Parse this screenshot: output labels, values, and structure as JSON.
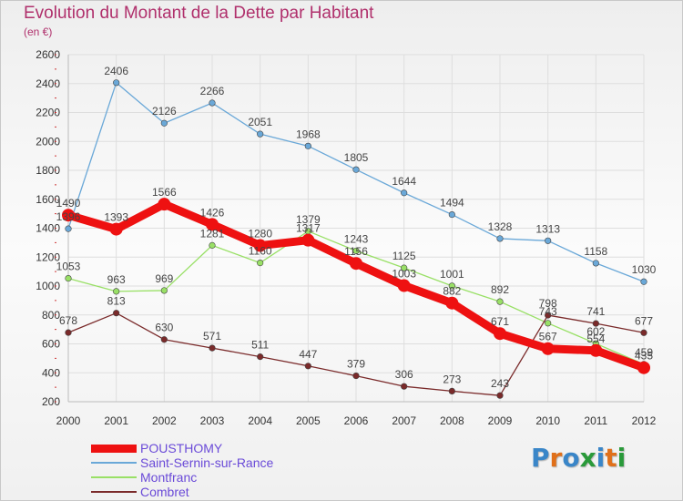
{
  "title": "Evolution du Montant de la Dette par Habitant",
  "subtitle": "(en €)",
  "logo": {
    "text": "Proxiti",
    "colors": [
      "#3a86c8",
      "#e0701a",
      "#3a86c8",
      "#2a9a3a",
      "#3a86c8",
      "#e0701a",
      "#2a9a3a"
    ]
  },
  "chart_data": {
    "type": "line",
    "title": "Evolution du Montant de la Dette par Habitant",
    "subtitle": "(en €)",
    "xlabel": "",
    "ylabel": "",
    "ylim": [
      200,
      2600
    ],
    "yticks": [
      200,
      400,
      600,
      800,
      1000,
      1200,
      1400,
      1600,
      1800,
      2000,
      2200,
      2400,
      2600
    ],
    "categories": [
      "2000",
      "2001",
      "2002",
      "2003",
      "2004",
      "2005",
      "2006",
      "2007",
      "2008",
      "2009",
      "2010",
      "2011",
      "2012"
    ],
    "grid": true,
    "legend_position": "bottom-left",
    "series": [
      {
        "name": "POUSTHOMY",
        "color": "#ee1111",
        "emphasis": true,
        "values": [
          1490,
          1393,
          1566,
          1426,
          1280,
          1317,
          1156,
          1003,
          882,
          671,
          567,
          554,
          435
        ]
      },
      {
        "name": "Saint-Sernin-sur-Rance",
        "color": "#6aa8d8",
        "emphasis": false,
        "values": [
          1396,
          2406,
          2126,
          2266,
          2051,
          1968,
          1805,
          1644,
          1494,
          1328,
          1313,
          1158,
          1030
        ]
      },
      {
        "name": "Montfranc",
        "color": "#99e066",
        "emphasis": false,
        "values": [
          1053,
          963,
          969,
          1281,
          1160,
          1379,
          1243,
          1125,
          1001,
          892,
          743,
          602,
          459
        ]
      },
      {
        "name": "Combret",
        "color": "#7a2a2a",
        "emphasis": false,
        "values": [
          678,
          813,
          630,
          571,
          511,
          447,
          379,
          306,
          273,
          243,
          798,
          741,
          677
        ]
      }
    ]
  }
}
